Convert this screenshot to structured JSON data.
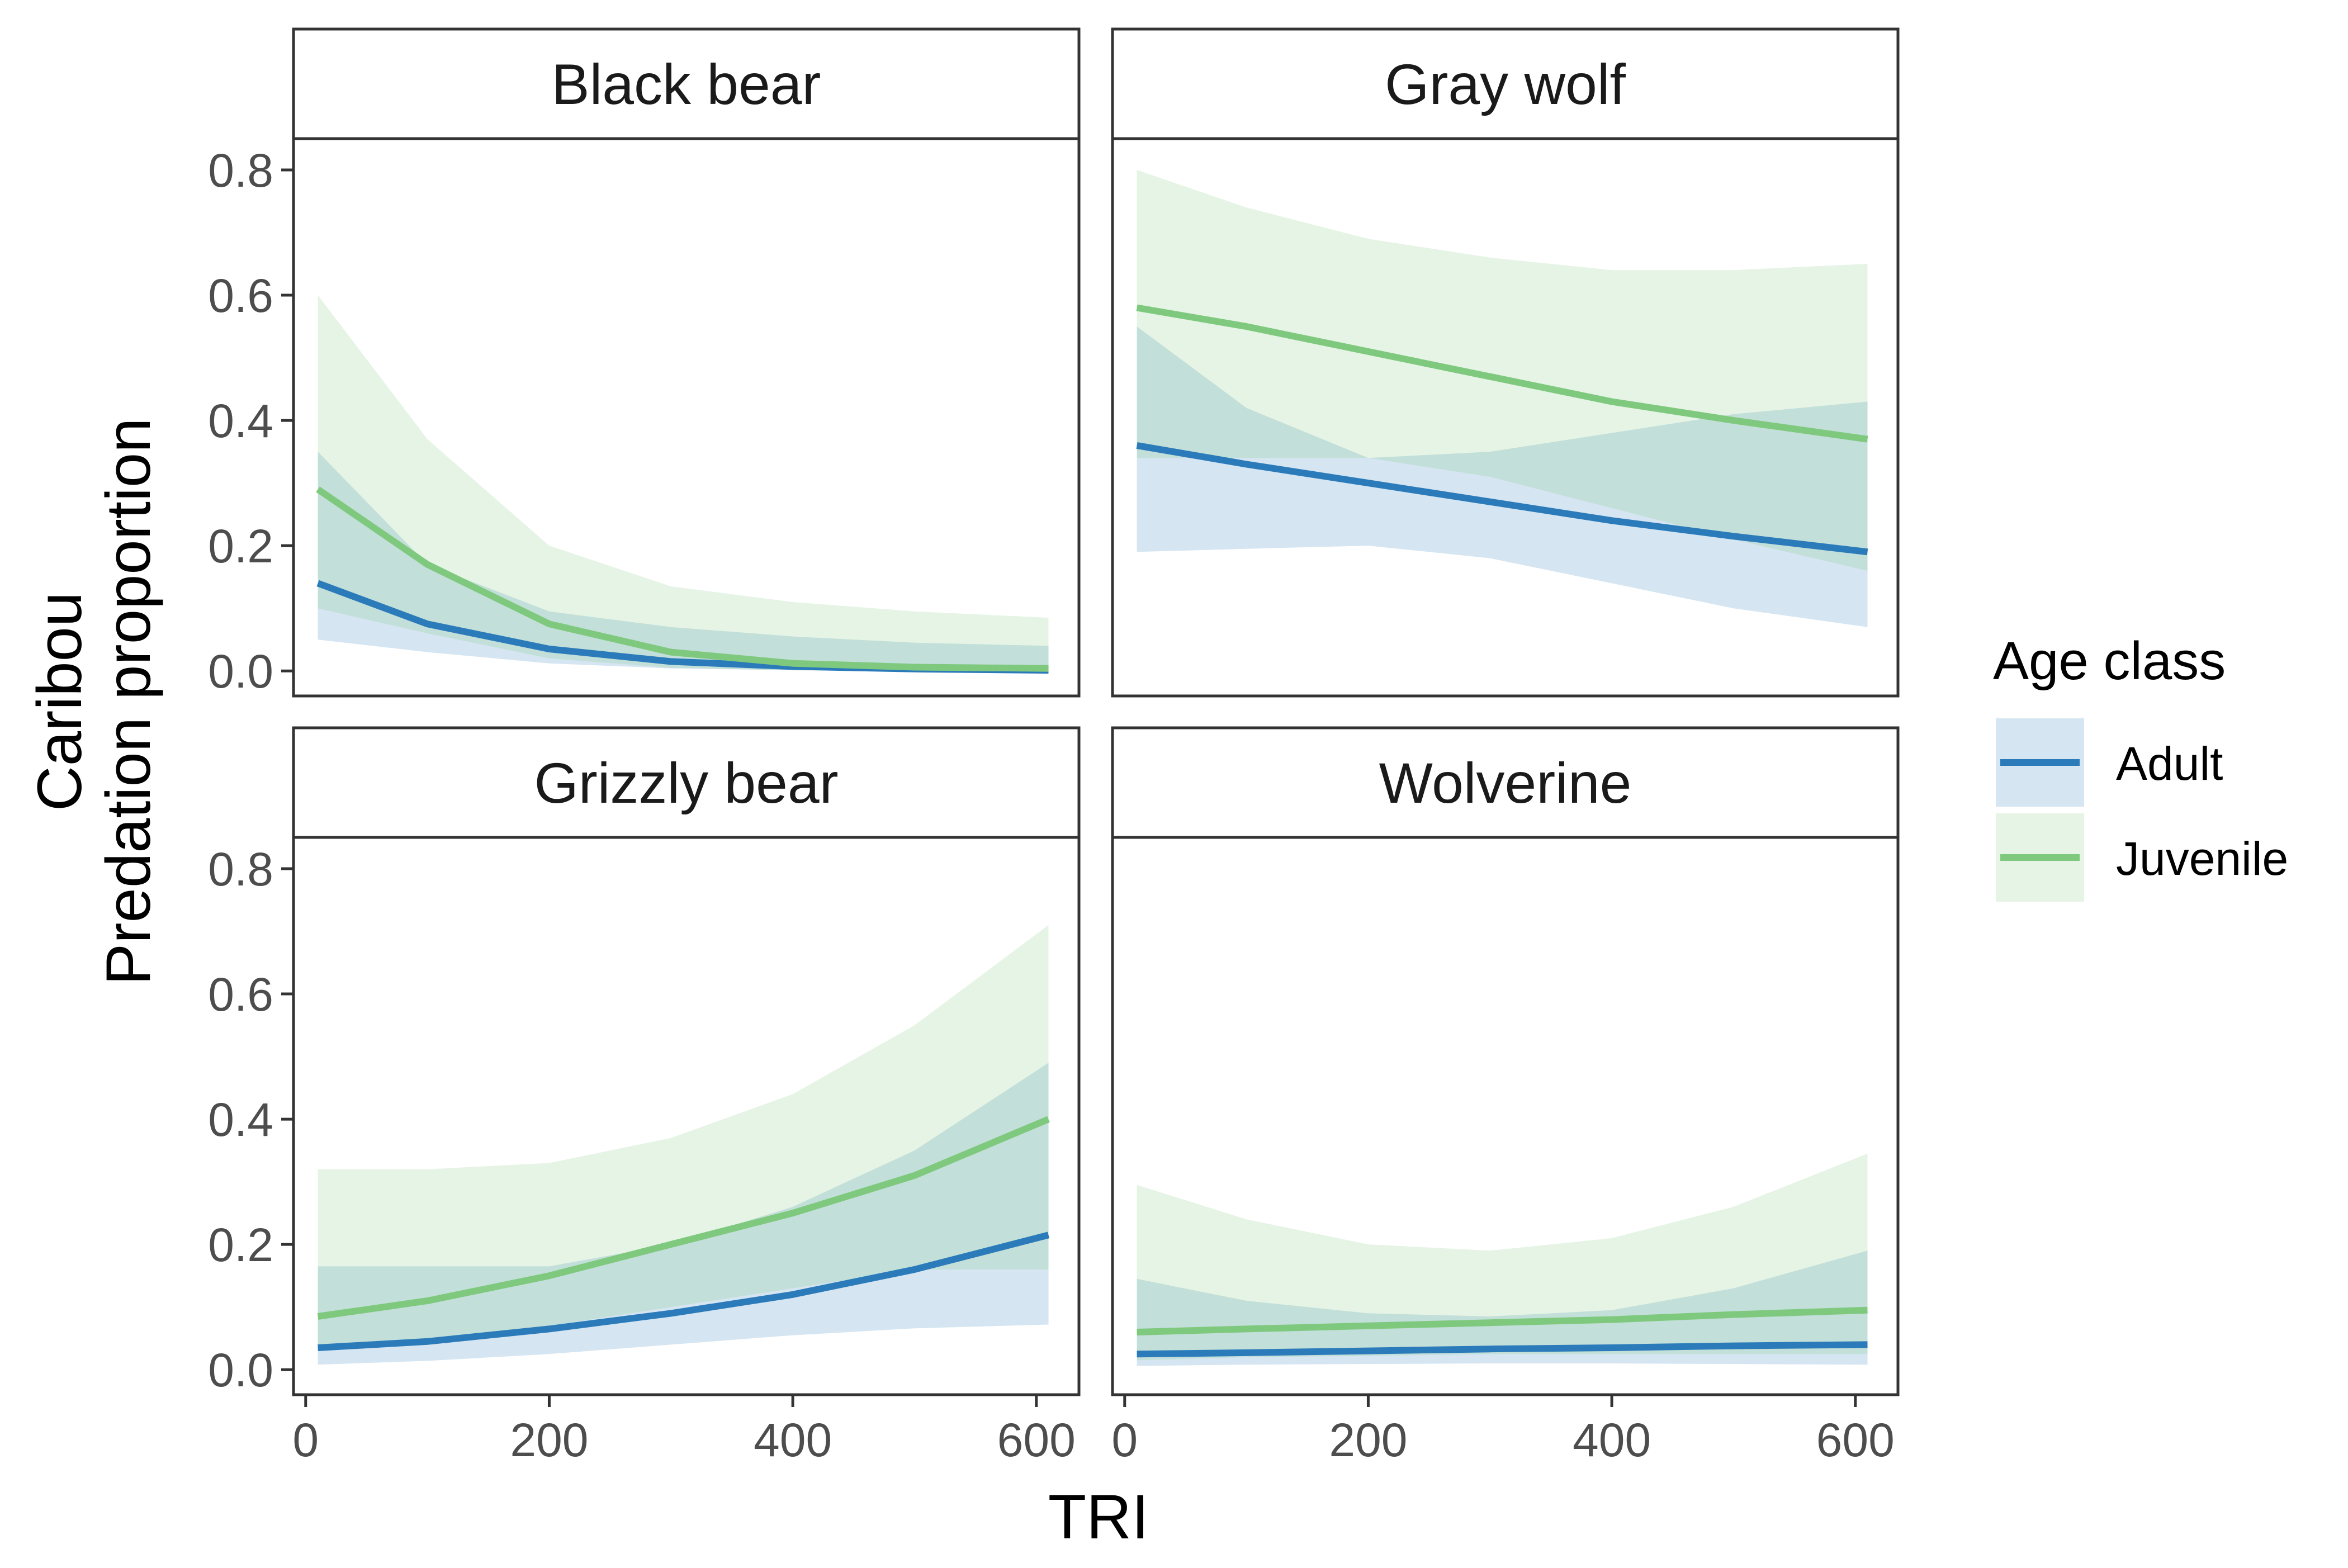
{
  "chart_data": {
    "type": "line",
    "x": [
      10,
      100,
      200,
      300,
      400,
      500,
      610
    ],
    "xlabel": "TRI",
    "ylabel_lines": [
      "Caribou",
      "Predation proportion"
    ],
    "xlim": [
      -10,
      635
    ],
    "ylim": [
      -0.04,
      0.85
    ],
    "x_ticks": [
      0,
      200,
      400,
      600
    ],
    "y_ticks": [
      0.0,
      0.2,
      0.4,
      0.6,
      0.8
    ],
    "y_tick_labels": [
      "0.0",
      "0.2",
      "0.4",
      "0.6",
      "0.8"
    ],
    "grid": false,
    "legend": {
      "title": "Age class",
      "position": "right",
      "entries": [
        {
          "name": "Adult",
          "color": "#2b7bba",
          "fill": "#d3e4f0"
        },
        {
          "name": "Juvenile",
          "color": "#7fc97f",
          "fill": "#e5f4e5"
        }
      ]
    },
    "panels": [
      {
        "title": "Black bear",
        "series": [
          {
            "name": "Adult",
            "values": [
              0.14,
              0.075,
              0.035,
              0.015,
              0.007,
              0.003,
              0.001
            ],
            "lower": [
              0.05,
              0.03,
              0.012,
              0.004,
              0.001,
              0.0,
              0.0
            ],
            "upper": [
              0.35,
              0.17,
              0.095,
              0.07,
              0.055,
              0.045,
              0.04
            ]
          },
          {
            "name": "Juvenile",
            "values": [
              0.29,
              0.17,
              0.075,
              0.03,
              0.012,
              0.006,
              0.004
            ],
            "lower": [
              0.1,
              0.06,
              0.02,
              0.005,
              0.001,
              0.0,
              0.0
            ],
            "upper": [
              0.6,
              0.37,
              0.2,
              0.135,
              0.11,
              0.095,
              0.085
            ]
          }
        ]
      },
      {
        "title": "Gray wolf",
        "series": [
          {
            "name": "Adult",
            "values": [
              0.36,
              0.33,
              0.3,
              0.27,
              0.24,
              0.215,
              0.19
            ],
            "lower": [
              0.19,
              0.195,
              0.2,
              0.18,
              0.14,
              0.1,
              0.07
            ],
            "upper": [
              0.55,
              0.42,
              0.34,
              0.35,
              0.38,
              0.41,
              0.43
            ]
          },
          {
            "name": "Juvenile",
            "values": [
              0.58,
              0.55,
              0.51,
              0.47,
              0.43,
              0.4,
              0.37
            ],
            "lower": [
              0.34,
              0.34,
              0.34,
              0.31,
              0.26,
              0.21,
              0.16
            ],
            "upper": [
              0.8,
              0.74,
              0.69,
              0.66,
              0.64,
              0.64,
              0.65
            ]
          }
        ]
      },
      {
        "title": "Grizzly bear",
        "series": [
          {
            "name": "Adult",
            "values": [
              0.035,
              0.045,
              0.065,
              0.09,
              0.12,
              0.16,
              0.215
            ],
            "lower": [
              0.008,
              0.014,
              0.025,
              0.04,
              0.055,
              0.066,
              0.072
            ],
            "upper": [
              0.165,
              0.165,
              0.165,
              0.2,
              0.26,
              0.35,
              0.49
            ]
          },
          {
            "name": "Juvenile",
            "values": [
              0.085,
              0.11,
              0.15,
              0.2,
              0.25,
              0.31,
              0.4
            ],
            "lower": [
              0.03,
              0.045,
              0.07,
              0.1,
              0.13,
              0.16,
              0.16
            ],
            "upper": [
              0.32,
              0.32,
              0.33,
              0.37,
              0.44,
              0.55,
              0.71
            ]
          }
        ]
      },
      {
        "title": "Wolverine",
        "series": [
          {
            "name": "Adult",
            "values": [
              0.025,
              0.027,
              0.03,
              0.033,
              0.035,
              0.038,
              0.04
            ],
            "lower": [
              0.006,
              0.008,
              0.009,
              0.01,
              0.01,
              0.009,
              0.008
            ],
            "upper": [
              0.145,
              0.11,
              0.09,
              0.085,
              0.095,
              0.13,
              0.19
            ]
          },
          {
            "name": "Juvenile",
            "values": [
              0.06,
              0.065,
              0.07,
              0.075,
              0.08,
              0.088,
              0.095
            ],
            "lower": [
              0.015,
              0.02,
              0.022,
              0.025,
              0.025,
              0.025,
              0.025
            ],
            "upper": [
              0.295,
              0.24,
              0.2,
              0.19,
              0.21,
              0.26,
              0.345
            ]
          }
        ]
      }
    ]
  }
}
